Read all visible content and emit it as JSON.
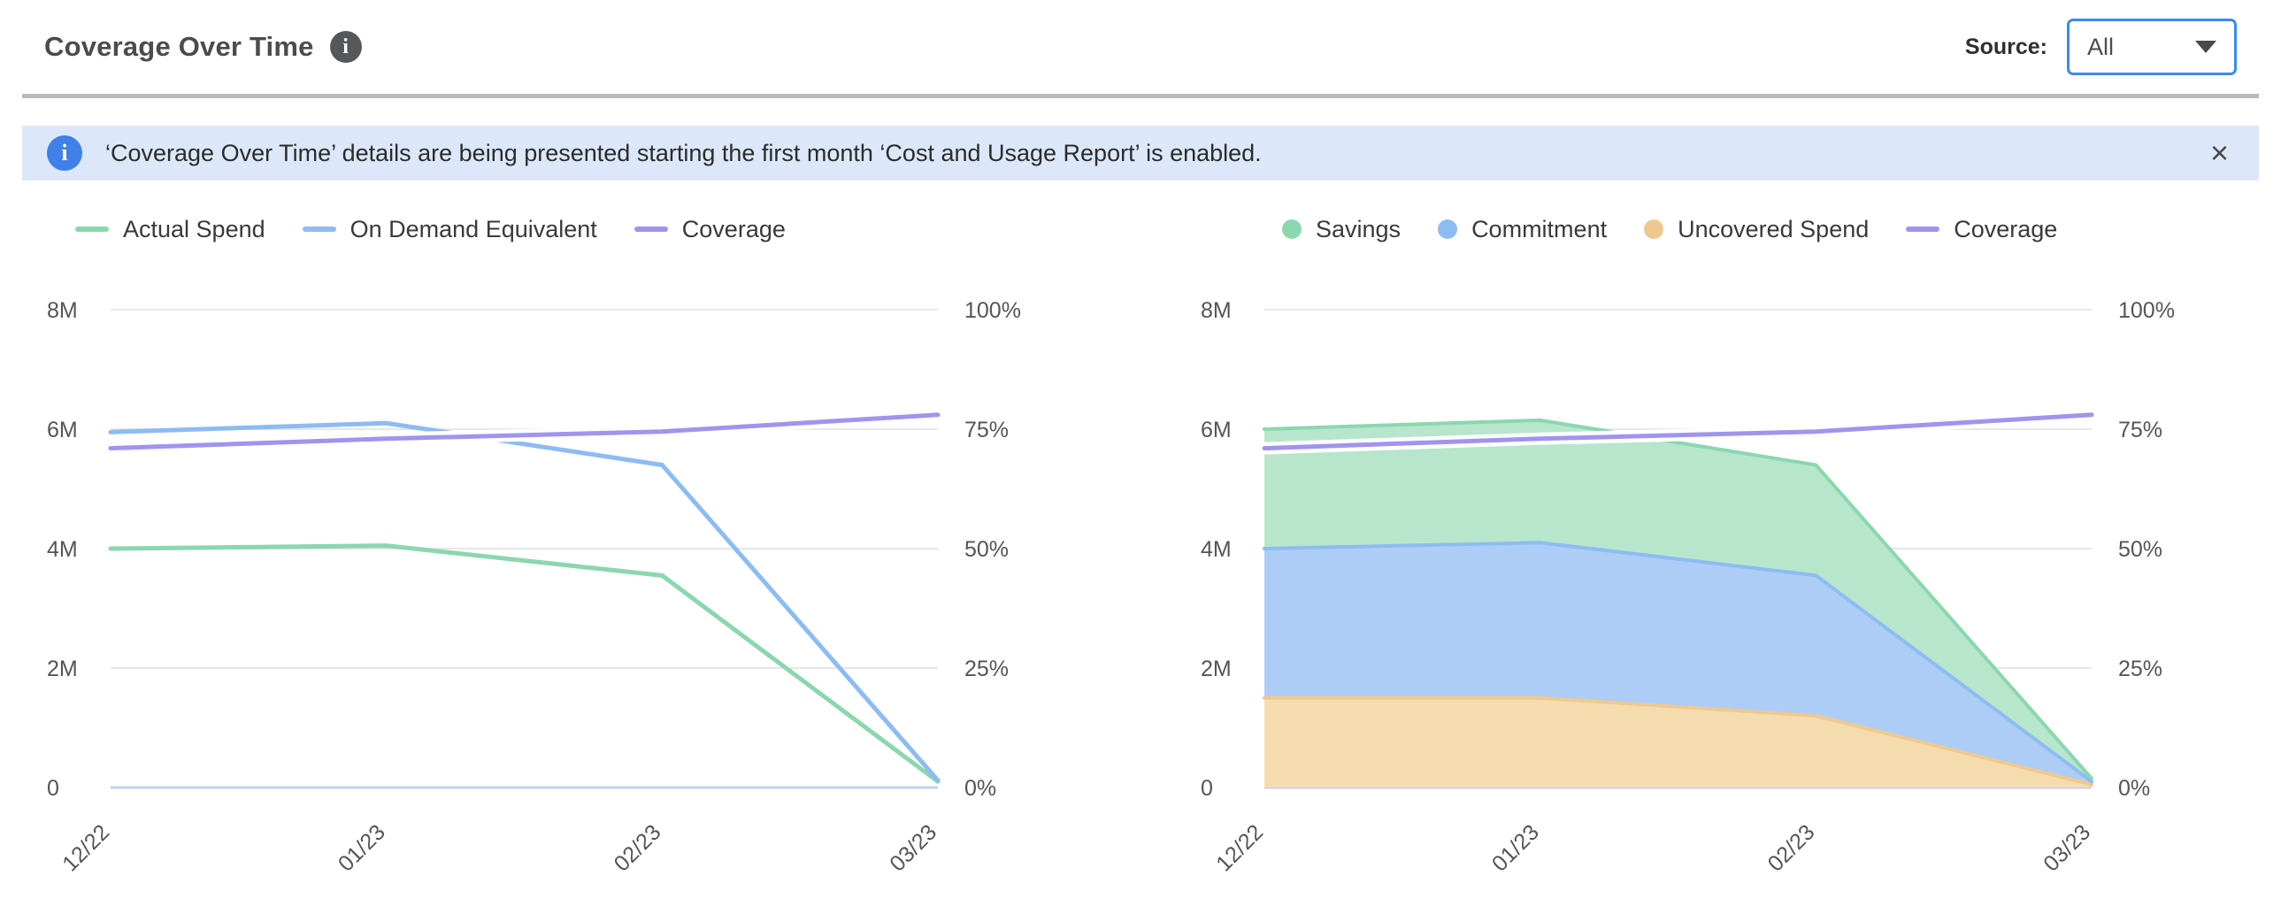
{
  "header": {
    "title": "Coverage Over Time",
    "info_glyph": "i",
    "source_label": "Source:",
    "source_value": "All"
  },
  "banner": {
    "info_glyph": "i",
    "text": "‘Coverage Over Time’ details are being presented starting the first month ‘Cost and Usage Report’ is enabled.",
    "close_glyph": "×"
  },
  "colors": {
    "green": "#8bd7ae",
    "green_fill": "#b7e6cd",
    "blue": "#8cbcf2",
    "blue_fill": "#aecdf6",
    "orange": "#eec98f",
    "orange_fill": "#f5dcae",
    "purple": "#a094ee",
    "grid": "#e7e7e7",
    "baseline": "#c5d0ee",
    "axis_text": "#555555",
    "banner_bg": "#dce8fa",
    "banner_icon": "#4080e8",
    "dropdown_border": "#3f88f4"
  },
  "chart_data": [
    {
      "type": "line",
      "name": "spend-line-chart",
      "x": [
        "12/22",
        "01/23",
        "02/23",
        "03/23"
      ],
      "left_axis": {
        "ticks": [
          "8M",
          "6M",
          "4M",
          "2M",
          "0"
        ],
        "max": 8
      },
      "right_axis": {
        "ticks": [
          "100%",
          "75%",
          "50%",
          "25%",
          "0%"
        ],
        "max": 100
      },
      "grid": true,
      "legend": [
        {
          "label": "Actual Spend",
          "swatch": "line",
          "color": "#8bd7ae"
        },
        {
          "label": "On Demand Equivalent",
          "swatch": "line",
          "color": "#8cbcf2"
        },
        {
          "label": "Coverage",
          "swatch": "line",
          "color": "#a094ee"
        }
      ],
      "series": [
        {
          "name": "Actual Spend",
          "kind": "line",
          "axis": "left",
          "color": "#8bd7ae",
          "values": [
            4.0,
            4.05,
            3.55,
            0.1
          ]
        },
        {
          "name": "On Demand Equivalent",
          "kind": "line",
          "axis": "left",
          "color": "#8cbcf2",
          "values": [
            5.95,
            6.1,
            5.4,
            0.12
          ]
        },
        {
          "name": "Coverage",
          "kind": "line",
          "axis": "right",
          "color": "#a094ee",
          "halo": true,
          "values": [
            71,
            73,
            74.5,
            78
          ]
        }
      ]
    },
    {
      "type": "area",
      "name": "coverage-area-chart",
      "stacked": true,
      "x": [
        "12/22",
        "01/23",
        "02/23",
        "03/23"
      ],
      "left_axis": {
        "ticks": [
          "8M",
          "6M",
          "4M",
          "2M",
          "0"
        ],
        "max": 8
      },
      "right_axis": {
        "ticks": [
          "100%",
          "75%",
          "50%",
          "25%",
          "0%"
        ],
        "max": 100
      },
      "grid": true,
      "legend": [
        {
          "label": "Savings",
          "swatch": "dot",
          "color": "#8bd7ae"
        },
        {
          "label": "Commitment",
          "swatch": "dot",
          "color": "#8cbcf2"
        },
        {
          "label": "Uncovered Spend",
          "swatch": "dot",
          "color": "#eec98f"
        },
        {
          "label": "Coverage",
          "swatch": "line",
          "color": "#a094ee"
        }
      ],
      "series": [
        {
          "name": "Uncovered Spend",
          "kind": "area",
          "axis": "left",
          "color": "#eec98f",
          "fill": "#f5dcae",
          "values": [
            1.5,
            1.5,
            1.2,
            0.05
          ]
        },
        {
          "name": "Commitment",
          "kind": "area",
          "axis": "left",
          "color": "#8cbcf2",
          "fill": "#aecdf6",
          "values": [
            2.5,
            2.6,
            2.35,
            0.05
          ]
        },
        {
          "name": "Savings",
          "kind": "area",
          "axis": "left",
          "color": "#8bd7ae",
          "fill": "#b7e6cd",
          "values": [
            2.0,
            2.05,
            1.85,
            0.05
          ]
        },
        {
          "name": "Coverage",
          "kind": "line",
          "axis": "right",
          "color": "#a094ee",
          "halo": true,
          "values": [
            71,
            73,
            74.5,
            78
          ]
        }
      ]
    }
  ]
}
